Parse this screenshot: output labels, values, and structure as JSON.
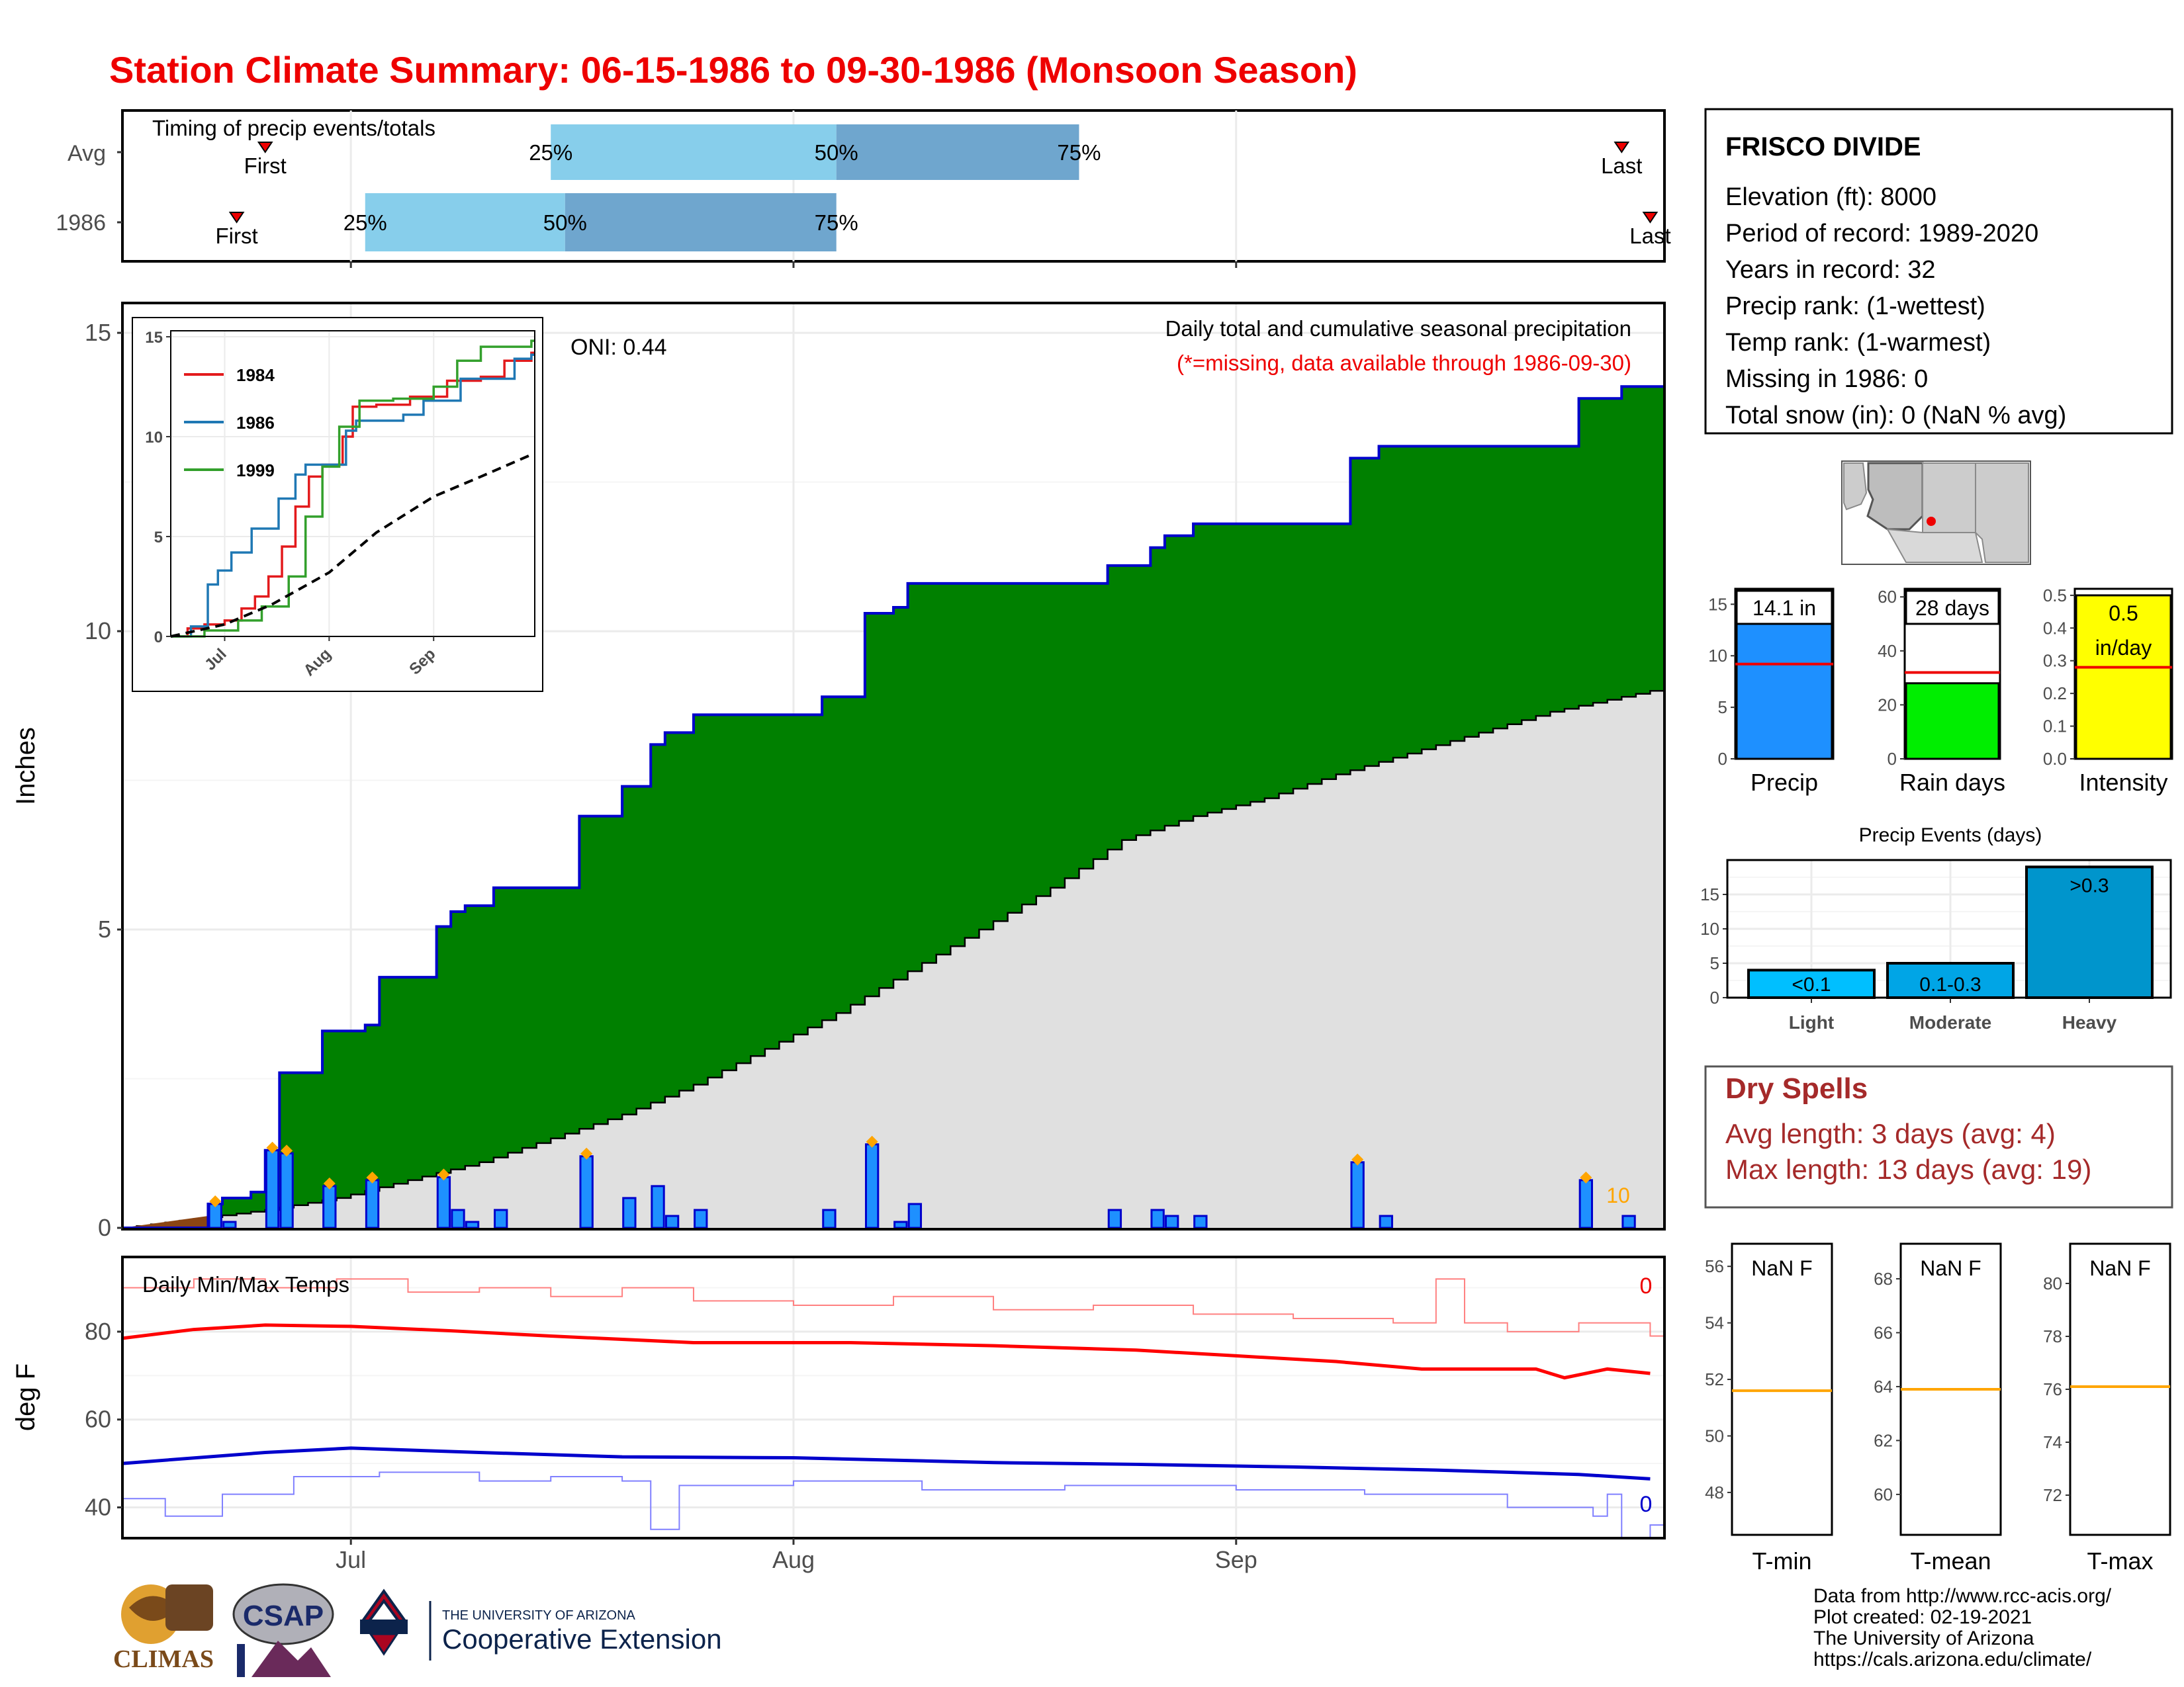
{
  "title": "Station Climate Summary: 06-15-1986 to 09-30-1986 (Monsoon Season)",
  "colors": {
    "title": "#ee0000",
    "cumulative_fill": "#008000",
    "cumulative_line": "#0000cc",
    "normal_fill": "#e0e0e0",
    "daily_bar": "#1e90ff",
    "marker": "#ffa500",
    "tmax": "#ff0000",
    "tmin": "#0000cc",
    "brown": "#8b4513",
    "q_light": "#87ceeb",
    "q_dark": "#6fa6ce",
    "dry_spell": "#a52a2a"
  },
  "timing": {
    "title": "Timing of precip events/totals",
    "rows": [
      {
        "label": "Avg",
        "first": "First",
        "last": "Last",
        "q25": "25%",
        "q50": "50%",
        "q75": "75%",
        "first_date": "1986-06-25",
        "q25_date": "1986-07-15",
        "q50_date": "1986-08-04",
        "q75_date": "1986-08-21",
        "last_date": "1986-09-28"
      },
      {
        "label": "1986",
        "first": "First",
        "last": "Last",
        "q25": "25%",
        "q50": "50%",
        "q75": "75%",
        "first_date": "1986-06-23",
        "q25_date": "1986-07-02",
        "q50_date": "1986-07-16",
        "q75_date": "1986-08-04",
        "last_date": "1986-09-30"
      }
    ]
  },
  "main": {
    "ylabel": "Inches",
    "oni": "ONI: 0.44",
    "subtitle": "Daily total and cumulative seasonal precipitation",
    "missing_note": "(*=missing, data available through 1986-09-30)",
    "bar_count_label": "10",
    "yticks": [
      "0",
      "5",
      "10",
      "15"
    ]
  },
  "inset": {
    "yticks": [
      "0",
      "5",
      "10",
      "15"
    ],
    "xticks": [
      "Jul",
      "Aug",
      "Sep"
    ],
    "legend": [
      {
        "name": "1984",
        "color": "#e31a1c"
      },
      {
        "name": "1986",
        "color": "#1f78b4"
      },
      {
        "name": "1999",
        "color": "#33a02c"
      }
    ]
  },
  "temps": {
    "title": "Daily Min/Max Temps",
    "ylabel": "deg F",
    "yticks": [
      "40",
      "60",
      "80"
    ],
    "tmax_missing": "0",
    "tmin_missing": "0"
  },
  "xticks": [
    "Jul",
    "Aug",
    "Sep"
  ],
  "station": {
    "name": "FRISCO DIVIDE",
    "lines": [
      "Elevation (ft): 8000",
      "Period of record: 1989-2020",
      "Years in record: 32",
      "Precip rank:  (1-wettest)",
      "Temp rank:  (1-warmest)",
      "Missing in 1986: 0",
      "Total snow (in): 0 (NaN % avg)"
    ]
  },
  "mini_bars": [
    {
      "label": "Precip",
      "value_text": "14.1 in",
      "value": 14.1,
      "avg": 9.2,
      "ymax": 16.5,
      "ticks": [
        "0",
        "5",
        "10",
        "15"
      ],
      "color": "#1e90ff"
    },
    {
      "label": "Rain days",
      "value_text": "28 days",
      "value": 28,
      "avg": 32,
      "ymax": 63,
      "ticks": [
        "0",
        "20",
        "40",
        "60"
      ],
      "color": "#00ee00"
    },
    {
      "label": "Intensity",
      "value_text": "0.5 in/day",
      "value": 0.5,
      "avg": 0.28,
      "ymax": 0.52,
      "ticks": [
        "0.0",
        "0.1",
        "0.2",
        "0.3",
        "0.4",
        "0.5"
      ],
      "color": "#ffff00"
    }
  ],
  "events": {
    "title": "Precip Events (days)",
    "ticks": [
      "0",
      "5",
      "10",
      "15"
    ],
    "bars": [
      {
        "category": "Light",
        "label": "<0.1",
        "value": 4,
        "color": "#00bfff"
      },
      {
        "category": "Moderate",
        "label": "0.1-0.3",
        "value": 5,
        "color": "#00a5e6"
      },
      {
        "category": "Heavy",
        "label": ">0.3",
        "value": 19,
        "color": "#0095cc"
      }
    ]
  },
  "dry_spells": {
    "title": "Dry Spells",
    "avg": "Avg length: 3 days (avg: 4)",
    "max": "Max length: 13 days (avg: 19)"
  },
  "temp_boxes": [
    {
      "label": "T-min",
      "value": "NaN F",
      "ticks": [
        "48",
        "50",
        "52",
        "54",
        "56"
      ],
      "normal": 51.6,
      "range": [
        46.5,
        56.8
      ]
    },
    {
      "label": "T-mean",
      "value": "NaN F",
      "ticks": [
        "60",
        "62",
        "64",
        "66",
        "68"
      ],
      "normal": 63.9,
      "range": [
        58.5,
        69.3
      ]
    },
    {
      "label": "T-max",
      "value": "NaN F",
      "ticks": [
        "72",
        "74",
        "76",
        "78",
        "80"
      ],
      "normal": 76.1,
      "range": [
        70.5,
        81.5
      ]
    }
  ],
  "footer": {
    "lines": [
      "Data from http://www.rcc-acis.org/",
      "Plot created: 02-19-2021",
      "The University of Arizona",
      "https://cals.arizona.edu/climate/"
    ],
    "logo_climas": "CLIMAS",
    "logo_csap": "CSAP",
    "logo_ua_small": "THE UNIVERSITY OF ARIZONA",
    "logo_ua_big": "Cooperative Extension"
  },
  "chart_data": {
    "type": "area",
    "x_start": "1986-06-15",
    "x_end": "1986-09-30",
    "ylim": [
      0,
      15.5
    ],
    "daily_precip": [
      {
        "date": "1986-06-21",
        "value": 0.4
      },
      {
        "date": "1986-06-22",
        "value": 0.1
      },
      {
        "date": "1986-06-25",
        "value": 1.3
      },
      {
        "date": "1986-06-26",
        "value": 1.25
      },
      {
        "date": "1986-06-29",
        "value": 0.7
      },
      {
        "date": "1986-07-02",
        "value": 0.8
      },
      {
        "date": "1986-07-07",
        "value": 0.85
      },
      {
        "date": "1986-07-08",
        "value": 0.3
      },
      {
        "date": "1986-07-09",
        "value": 0.1
      },
      {
        "date": "1986-07-11",
        "value": 0.3
      },
      {
        "date": "1986-07-17",
        "value": 1.2
      },
      {
        "date": "1986-07-20",
        "value": 0.5
      },
      {
        "date": "1986-07-22",
        "value": 0.7
      },
      {
        "date": "1986-07-23",
        "value": 0.2
      },
      {
        "date": "1986-07-25",
        "value": 0.3
      },
      {
        "date": "1986-08-03",
        "value": 0.3
      },
      {
        "date": "1986-08-06",
        "value": 1.4
      },
      {
        "date": "1986-08-08",
        "value": 0.1
      },
      {
        "date": "1986-08-09",
        "value": 0.4
      },
      {
        "date": "1986-08-23",
        "value": 0.3
      },
      {
        "date": "1986-08-26",
        "value": 0.3
      },
      {
        "date": "1986-08-27",
        "value": 0.2
      },
      {
        "date": "1986-08-29",
        "value": 0.2
      },
      {
        "date": "1986-09-09",
        "value": 1.1
      },
      {
        "date": "1986-09-11",
        "value": 0.2
      },
      {
        "date": "1986-09-25",
        "value": 0.8
      },
      {
        "date": "1986-09-28",
        "value": 0.2
      }
    ],
    "marked_days": [
      "1986-06-21",
      "1986-06-25",
      "1986-06-26",
      "1986-06-29",
      "1986-07-02",
      "1986-07-07",
      "1986-07-17",
      "1986-08-06",
      "1986-09-09",
      "1986-09-25"
    ],
    "cumulative_1986": [
      {
        "date": "1986-06-15",
        "value": 0
      },
      {
        "date": "1986-06-21",
        "value": 0.4
      },
      {
        "date": "1986-06-22",
        "value": 0.5
      },
      {
        "date": "1986-06-24",
        "value": 0.6
      },
      {
        "date": "1986-06-25",
        "value": 1.3
      },
      {
        "date": "1986-06-26",
        "value": 2.6
      },
      {
        "date": "1986-06-29",
        "value": 3.3
      },
      {
        "date": "1986-07-02",
        "value": 3.4
      },
      {
        "date": "1986-07-03",
        "value": 4.2
      },
      {
        "date": "1986-07-07",
        "value": 5.05
      },
      {
        "date": "1986-07-08",
        "value": 5.3
      },
      {
        "date": "1986-07-09",
        "value": 5.4
      },
      {
        "date": "1986-07-11",
        "value": 5.7
      },
      {
        "date": "1986-07-17",
        "value": 6.9
      },
      {
        "date": "1986-07-20",
        "value": 7.4
      },
      {
        "date": "1986-07-22",
        "value": 8.1
      },
      {
        "date": "1986-07-23",
        "value": 8.3
      },
      {
        "date": "1986-07-25",
        "value": 8.6
      },
      {
        "date": "1986-08-03",
        "value": 8.9
      },
      {
        "date": "1986-08-06",
        "value": 10.3
      },
      {
        "date": "1986-08-08",
        "value": 10.4
      },
      {
        "date": "1986-08-09",
        "value": 10.8
      },
      {
        "date": "1986-08-23",
        "value": 11.1
      },
      {
        "date": "1986-08-26",
        "value": 11.4
      },
      {
        "date": "1986-08-27",
        "value": 11.6
      },
      {
        "date": "1986-08-29",
        "value": 11.8
      },
      {
        "date": "1986-09-09",
        "value": 12.9
      },
      {
        "date": "1986-09-11",
        "value": 13.1
      },
      {
        "date": "1986-09-25",
        "value": 13.9
      },
      {
        "date": "1986-09-28",
        "value": 14.1
      },
      {
        "date": "1986-09-30",
        "value": 14.1
      }
    ],
    "cumulative_normal": [
      {
        "date": "1986-06-15",
        "value": 0
      },
      {
        "date": "1986-06-20",
        "value": 0.15
      },
      {
        "date": "1986-06-25",
        "value": 0.3
      },
      {
        "date": "1986-06-30",
        "value": 0.5
      },
      {
        "date": "1986-07-05",
        "value": 0.8
      },
      {
        "date": "1986-07-10",
        "value": 1.1
      },
      {
        "date": "1986-07-15",
        "value": 1.5
      },
      {
        "date": "1986-07-20",
        "value": 1.9
      },
      {
        "date": "1986-07-25",
        "value": 2.4
      },
      {
        "date": "1986-07-30",
        "value": 3.0
      },
      {
        "date": "1986-08-04",
        "value": 3.6
      },
      {
        "date": "1986-08-09",
        "value": 4.3
      },
      {
        "date": "1986-08-14",
        "value": 5.0
      },
      {
        "date": "1986-08-19",
        "value": 5.7
      },
      {
        "date": "1986-08-24",
        "value": 6.5
      },
      {
        "date": "1986-08-29",
        "value": 6.9
      },
      {
        "date": "1986-09-03",
        "value": 7.2
      },
      {
        "date": "1986-09-08",
        "value": 7.6
      },
      {
        "date": "1986-09-13",
        "value": 7.95
      },
      {
        "date": "1986-09-18",
        "value": 8.3
      },
      {
        "date": "1986-09-23",
        "value": 8.65
      },
      {
        "date": "1986-09-30",
        "value": 9.0
      }
    ],
    "inset_series": [
      {
        "name": "1984",
        "points": [
          [
            "1986-06-15",
            0
          ],
          [
            "1986-06-20",
            0.4
          ],
          [
            "1986-06-25",
            0.6
          ],
          [
            "1986-07-01",
            0.8
          ],
          [
            "1986-07-06",
            1.4
          ],
          [
            "1986-07-10",
            2.0
          ],
          [
            "1986-07-14",
            3.0
          ],
          [
            "1986-07-18",
            4.5
          ],
          [
            "1986-07-22",
            6.5
          ],
          [
            "1986-07-26",
            8.0
          ],
          [
            "1986-07-30",
            8.6
          ],
          [
            "1986-08-05",
            10.0
          ],
          [
            "1986-08-08",
            11.5
          ],
          [
            "1986-08-15",
            11.6
          ],
          [
            "1986-08-25",
            12.0
          ],
          [
            "1986-09-05",
            12.8
          ],
          [
            "1986-09-15",
            13.0
          ],
          [
            "1986-09-22",
            13.8
          ],
          [
            "1986-09-30",
            14.2
          ]
        ]
      },
      {
        "name": "1986",
        "points": [
          [
            "1986-06-15",
            0
          ],
          [
            "1986-06-21",
            0.5
          ],
          [
            "1986-06-26",
            2.6
          ],
          [
            "1986-06-29",
            3.3
          ],
          [
            "1986-07-03",
            4.2
          ],
          [
            "1986-07-09",
            5.4
          ],
          [
            "1986-07-17",
            6.9
          ],
          [
            "1986-07-22",
            8.1
          ],
          [
            "1986-07-25",
            8.6
          ],
          [
            "1986-08-06",
            10.3
          ],
          [
            "1986-08-09",
            10.8
          ],
          [
            "1986-08-23",
            11.1
          ],
          [
            "1986-08-29",
            11.8
          ],
          [
            "1986-09-09",
            12.9
          ],
          [
            "1986-09-25",
            13.9
          ],
          [
            "1986-09-30",
            14.1
          ]
        ]
      },
      {
        "name": "1999",
        "points": [
          [
            "1986-06-15",
            0
          ],
          [
            "1986-06-25",
            0.3
          ],
          [
            "1986-07-05",
            0.8
          ],
          [
            "1986-07-12",
            1.5
          ],
          [
            "1986-07-20",
            3.0
          ],
          [
            "1986-07-25",
            6.0
          ],
          [
            "1986-07-30",
            8.5
          ],
          [
            "1986-08-04",
            10.5
          ],
          [
            "1986-08-10",
            11.8
          ],
          [
            "1986-08-20",
            11.9
          ],
          [
            "1986-09-01",
            12.5
          ],
          [
            "1986-09-08",
            13.8
          ],
          [
            "1986-09-15",
            14.5
          ],
          [
            "1986-09-30",
            14.8
          ]
        ]
      },
      {
        "name": "normal",
        "points": [
          [
            "1986-06-15",
            0
          ],
          [
            "1986-07-01",
            0.6
          ],
          [
            "1986-07-15",
            1.6
          ],
          [
            "1986-08-01",
            3.2
          ],
          [
            "1986-08-15",
            5.2
          ],
          [
            "1986-09-01",
            7.0
          ],
          [
            "1986-09-15",
            8.0
          ],
          [
            "1986-09-30",
            9.1
          ]
        ]
      }
    ],
    "temps": {
      "ylim": [
        33,
        97
      ],
      "tmax_normal": [
        [
          "1986-06-15",
          78.5
        ],
        [
          "1986-06-20",
          80.5
        ],
        [
          "1986-06-25",
          81.5
        ],
        [
          "1986-07-01",
          81.2
        ],
        [
          "1986-07-08",
          80.2
        ],
        [
          "1986-07-15",
          79
        ],
        [
          "1986-07-25",
          77.5
        ],
        [
          "1986-08-05",
          77.5
        ],
        [
          "1986-08-15",
          76.8
        ],
        [
          "1986-08-25",
          75.8
        ],
        [
          "1986-09-01",
          74.5
        ],
        [
          "1986-09-08",
          73.2
        ],
        [
          "1986-09-14",
          71.5
        ],
        [
          "1986-09-22",
          71.5
        ],
        [
          "1986-09-24",
          69.5
        ],
        [
          "1986-09-27",
          71.5
        ],
        [
          "1986-09-30",
          70.5
        ]
      ],
      "tmin_normal": [
        [
          "1986-06-15",
          50
        ],
        [
          "1986-06-25",
          52.5
        ],
        [
          "1986-07-01",
          53.5
        ],
        [
          "1986-07-10",
          52.5
        ],
        [
          "1986-07-20",
          51.5
        ],
        [
          "1986-08-01",
          51.3
        ],
        [
          "1986-08-15",
          50.2
        ],
        [
          "1986-08-25",
          49.8
        ],
        [
          "1986-09-05",
          49.2
        ],
        [
          "1986-09-15",
          48.5
        ],
        [
          "1986-09-25",
          47.5
        ],
        [
          "1986-09-30",
          46.5
        ]
      ],
      "tmax_obs": [
        [
          "1986-06-15",
          90
        ],
        [
          "1986-06-20",
          92
        ],
        [
          "1986-06-25",
          90
        ],
        [
          "1986-06-30",
          92
        ],
        [
          "1986-07-05",
          89
        ],
        [
          "1986-07-10",
          90
        ],
        [
          "1986-07-15",
          88
        ],
        [
          "1986-07-20",
          90
        ],
        [
          "1986-07-25",
          87
        ],
        [
          "1986-08-01",
          86
        ],
        [
          "1986-08-08",
          88
        ],
        [
          "1986-08-15",
          85
        ],
        [
          "1986-08-22",
          86
        ],
        [
          "1986-08-29",
          84
        ],
        [
          "1986-09-05",
          83
        ],
        [
          "1986-09-12",
          82
        ],
        [
          "1986-09-15",
          92
        ],
        [
          "1986-09-17",
          82
        ],
        [
          "1986-09-20",
          80
        ],
        [
          "1986-09-25",
          82
        ],
        [
          "1986-09-30",
          79
        ]
      ],
      "tmin_obs": [
        [
          "1986-06-15",
          42
        ],
        [
          "1986-06-18",
          38
        ],
        [
          "1986-06-22",
          43
        ],
        [
          "1986-06-27",
          47
        ],
        [
          "1986-07-03",
          48
        ],
        [
          "1986-07-10",
          46
        ],
        [
          "1986-07-15",
          47
        ],
        [
          "1986-07-20",
          46
        ],
        [
          "1986-07-22",
          35
        ],
        [
          "1986-07-24",
          45
        ],
        [
          "1986-08-01",
          46
        ],
        [
          "1986-08-10",
          44
        ],
        [
          "1986-08-20",
          45
        ],
        [
          "1986-09-01",
          44
        ],
        [
          "1986-09-10",
          43
        ],
        [
          "1986-09-20",
          40
        ],
        [
          "1986-09-26",
          38
        ],
        [
          "1986-09-27",
          43
        ],
        [
          "1986-09-28",
          33
        ],
        [
          "1986-09-30",
          36
        ]
      ]
    }
  }
}
